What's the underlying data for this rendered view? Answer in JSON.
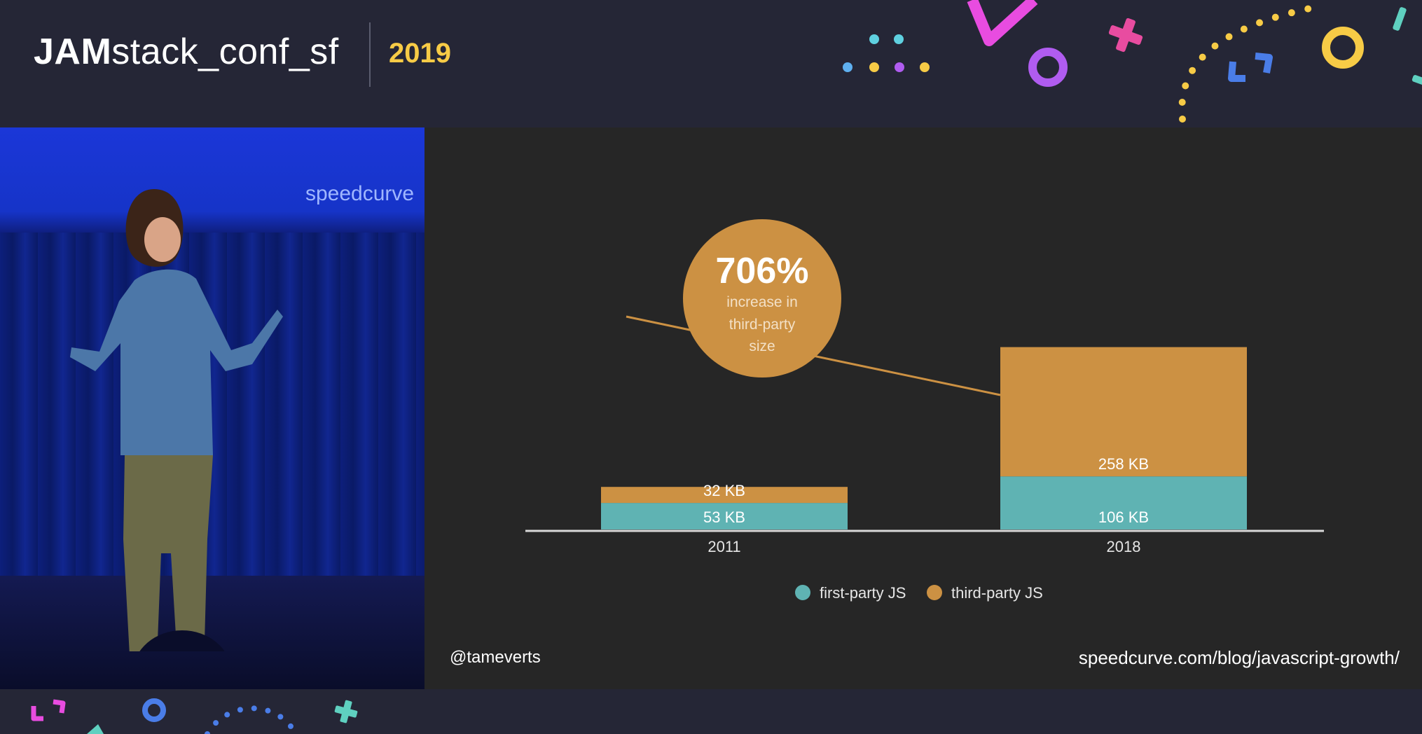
{
  "header": {
    "logo_bold": "JAM",
    "logo_rest": "stack_conf_sf",
    "year": "2019"
  },
  "video": {
    "stage_brand": "speedcurve"
  },
  "slide": {
    "handle": "@tameverts",
    "url": "speedcurve.com/blog/javascript-growth/",
    "callout": {
      "value": "706%",
      "lines": [
        "increase in",
        "third-party",
        "size"
      ]
    }
  },
  "chart_data": {
    "type": "bar",
    "stacked": true,
    "categories": [
      "2011",
      "2018"
    ],
    "series": [
      {
        "name": "first-party JS",
        "values": [
          53,
          106
        ],
        "labels": [
          "53 KB",
          "106 KB"
        ],
        "color": "#5fb3b3"
      },
      {
        "name": "third-party JS",
        "values": [
          32,
          258
        ],
        "labels": [
          "32 KB",
          "258 KB"
        ],
        "color": "#cc9143"
      }
    ],
    "unit": "KB",
    "legend_placement": "bottom-center",
    "grid": false
  },
  "colors": {
    "background": "#252636",
    "slide_background": "#262626",
    "year_yellow": "#f7cb46",
    "callout": "#cc9143",
    "teal": "#5fb3b3"
  }
}
